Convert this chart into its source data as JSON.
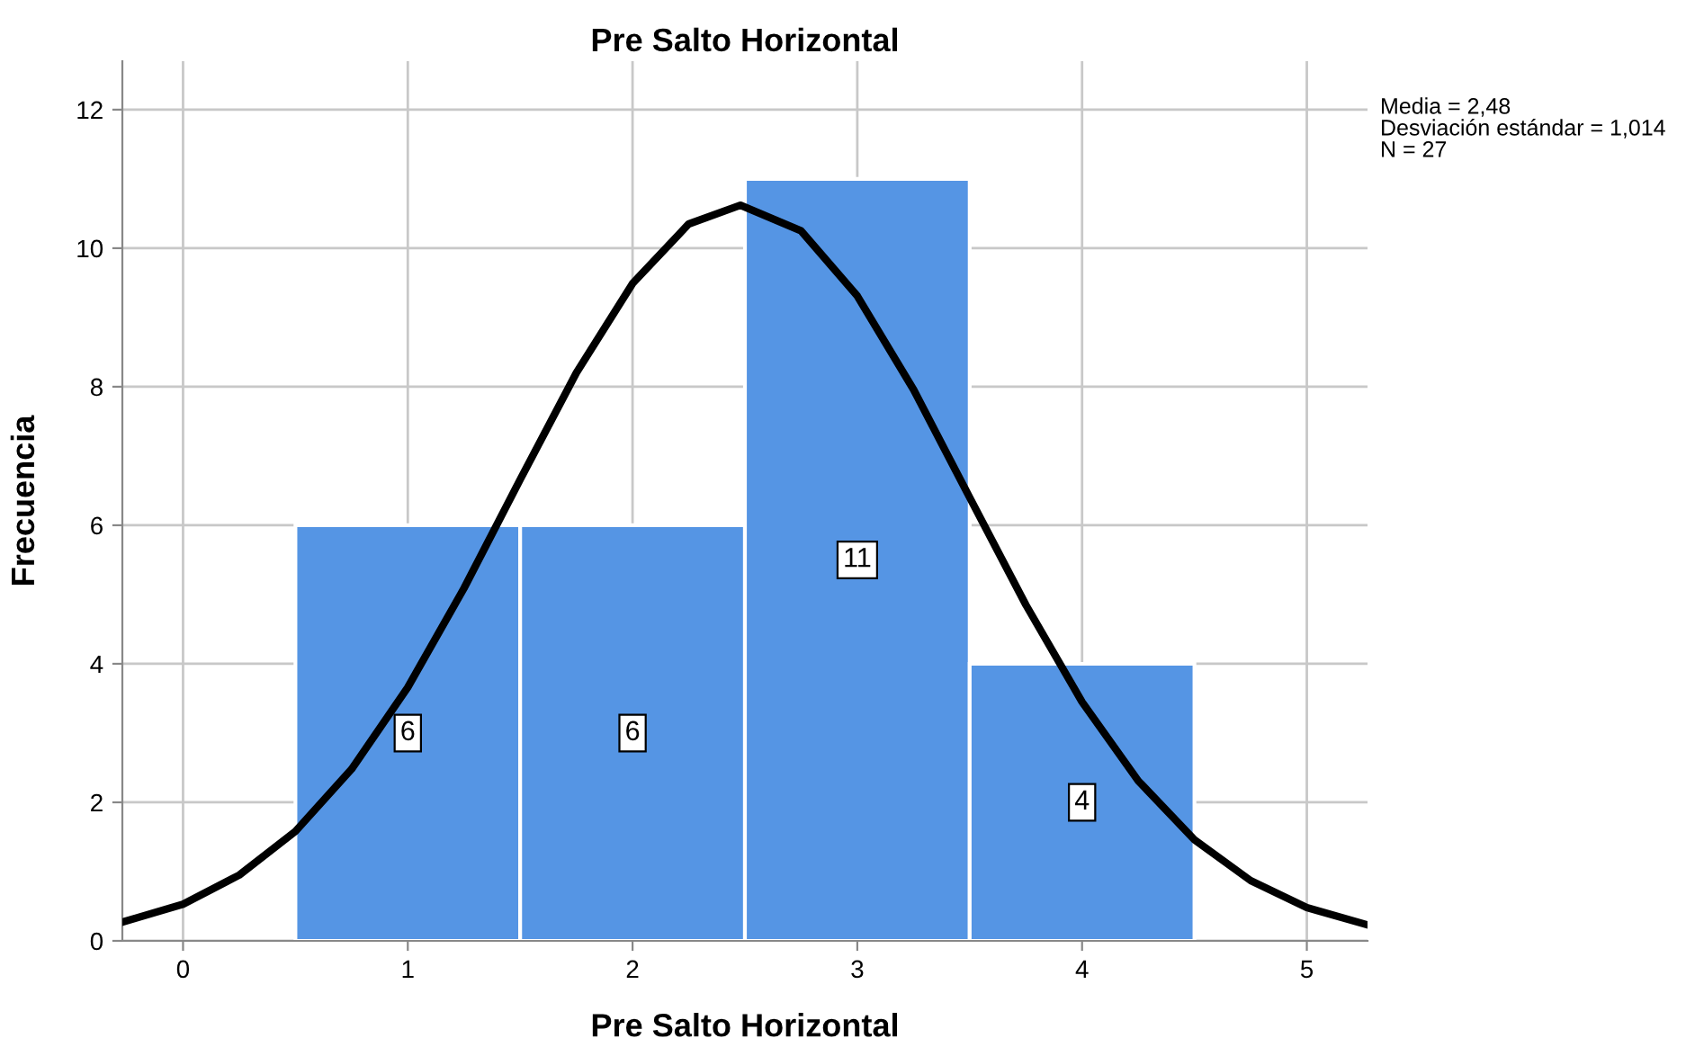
{
  "chart_data": {
    "type": "histogram",
    "title": "Pre Salto Horizontal",
    "xlabel": "Pre Salto Horizontal",
    "ylabel": "Frecuencia",
    "bins": [
      0.5,
      1.5,
      2.5,
      3.5,
      4.5
    ],
    "values": [
      6,
      6,
      11,
      4
    ],
    "color": "#5595e4",
    "value_labels": [
      "6",
      "6",
      "11",
      "4"
    ],
    "series": [
      {
        "type": "line",
        "color": "#000000",
        "x": [
          -0.27,
          0,
          0.25,
          0.5,
          0.75,
          1.0,
          1.25,
          1.5,
          1.75,
          2.0,
          2.25,
          2.48,
          2.75,
          3.0,
          3.25,
          3.5,
          3.75,
          4.0,
          4.25,
          4.5,
          4.75,
          5.0,
          5.27
        ],
        "values": [
          0.27,
          0.53,
          0.95,
          1.58,
          2.48,
          3.66,
          5.09,
          6.66,
          8.2,
          9.49,
          10.35,
          10.62,
          10.25,
          9.31,
          7.96,
          6.4,
          4.85,
          3.45,
          2.31,
          1.46,
          0.87,
          0.48,
          0.23
        ]
      }
    ],
    "annotations": [
      "Media = 2,48",
      "Desviación estándar = 1,014",
      "N = 27"
    ],
    "xlim": [
      -0.27,
      5.27
    ],
    "ylim": [
      0,
      12.7
    ],
    "xticks": [
      0,
      1,
      2,
      3,
      4,
      5
    ],
    "yticks": [
      0,
      2,
      4,
      6,
      8,
      10,
      12
    ],
    "grid": true
  }
}
